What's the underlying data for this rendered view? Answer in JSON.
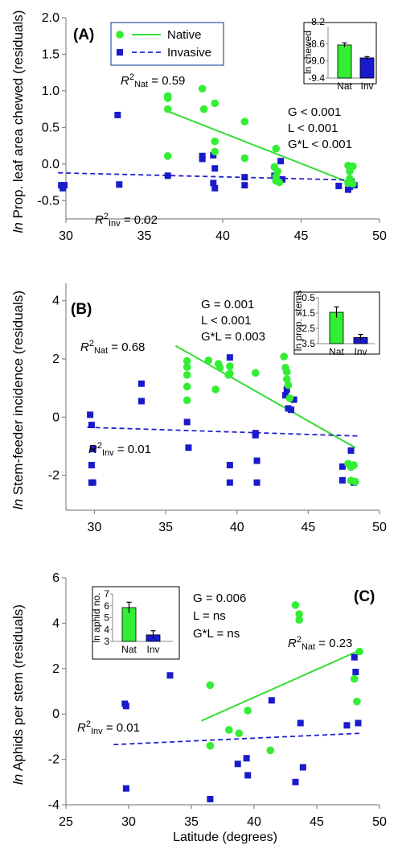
{
  "colors": {
    "native": "#33ee33",
    "invasive": "#1a1acc",
    "native_line": "#33dd33",
    "invasive_line": "#2222cc",
    "legend_border": "#5577bb"
  },
  "legend": {
    "native": "Native",
    "invasive": "Invasive"
  },
  "xlabel": "Latitude (degrees)",
  "chart_data": [
    {
      "type": "scatter",
      "label": "(A)",
      "ylabel": "Prop. leaf area chewed (residuals)",
      "ylabel_ln": "ln",
      "xlim": [
        30,
        50
      ],
      "ylim": [
        -0.75,
        2.0
      ],
      "xticks": [
        30,
        35,
        40,
        45,
        50
      ],
      "yticks": [
        -0.5,
        0.0,
        0.5,
        1.0,
        1.5,
        2.0
      ],
      "ytick_labels": [
        "-0.5",
        "0.0",
        "0.5",
        "1.0",
        "1.5",
        "2.0"
      ],
      "series": [
        {
          "name": "Native",
          "points": [
            [
              36.5,
              0.93
            ],
            [
              36.5,
              0.9
            ],
            [
              36.5,
              0.75
            ],
            [
              36.5,
              0.11
            ],
            [
              38.7,
              1.03
            ],
            [
              38.8,
              0.75
            ],
            [
              39.5,
              0.83
            ],
            [
              39.5,
              0.31
            ],
            [
              39.5,
              0.17
            ],
            [
              41.4,
              0.58
            ],
            [
              41.4,
              0.08
            ],
            [
              43.4,
              0.21
            ],
            [
              43.3,
              -0.04
            ],
            [
              43.5,
              -0.1
            ],
            [
              43.4,
              -0.17
            ],
            [
              43.4,
              -0.23
            ],
            [
              43.6,
              -0.25
            ],
            [
              48,
              -0.02
            ],
            [
              48.3,
              -0.03
            ],
            [
              48.1,
              -0.1
            ],
            [
              48.1,
              -0.2
            ],
            [
              48,
              -0.26
            ],
            [
              48.3,
              -0.27
            ]
          ],
          "fit": [
            [
              36.5,
              0.72
            ],
            [
              48.4,
              -0.28
            ]
          ]
        },
        {
          "name": "Invasive",
          "points": [
            [
              29.7,
              -0.29
            ],
            [
              29.8,
              -0.33
            ],
            [
              29.9,
              -0.29
            ],
            [
              33.3,
              0.67
            ],
            [
              33.4,
              -0.28
            ],
            [
              36.5,
              -0.16
            ],
            [
              38.7,
              0.11
            ],
            [
              38.7,
              0.07
            ],
            [
              39.4,
              0.12
            ],
            [
              39.5,
              -0.06
            ],
            [
              39.4,
              -0.26
            ],
            [
              39.5,
              -0.33
            ],
            [
              41.4,
              -0.18
            ],
            [
              41.4,
              -0.29
            ],
            [
              43.3,
              -0.16
            ],
            [
              43.7,
              0.04
            ],
            [
              43.8,
              -0.21
            ],
            [
              47.4,
              -0.3
            ],
            [
              48,
              -0.35
            ],
            [
              48.1,
              -0.31
            ],
            [
              48.2,
              -0.24
            ],
            [
              48.4,
              -0.29
            ]
          ],
          "fit": [
            [
              29.5,
              -0.12
            ],
            [
              48.4,
              -0.22
            ]
          ]
        }
      ],
      "r2": [
        {
          "prefix": "R",
          "sup": "2",
          "sub": "Nat",
          "value": " = 0.59"
        },
        {
          "prefix": "R",
          "sup": "2",
          "sub": "Inv",
          "value": " = 0.02"
        }
      ],
      "stats": [
        "G < 0.001",
        "L < 0.001",
        "G*L < 0.001"
      ],
      "inset": {
        "ylabel": "ln chewed",
        "categories": [
          "Nat",
          "Inv"
        ],
        "values": [
          -8.63,
          -8.93
        ],
        "errors": [
          0.05,
          0.03
        ],
        "ylim": [
          -9.4,
          -8.2
        ],
        "yticks": [
          -8.6,
          -9.0,
          -9.4
        ],
        "ytick_labels": [
          "-8.6",
          "-9.0",
          "-9.4"
        ],
        "top_label": "-8.2"
      }
    },
    {
      "type": "scatter",
      "label": "(B)",
      "ylabel": "Stem-feeder incidence (residuals)",
      "ylabel_ln": "ln",
      "xlim": [
        28,
        50
      ],
      "ylim": [
        -3.2,
        4.6
      ],
      "xticks": [
        30,
        35,
        40,
        45,
        50
      ],
      "yticks": [
        -2,
        0,
        2,
        4
      ],
      "ytick_labels": [
        "-2",
        "0",
        "2",
        "4"
      ],
      "series": [
        {
          "name": "Native",
          "points": [
            [
              36.5,
              1.93
            ],
            [
              36.5,
              1.72
            ],
            [
              36.5,
              1.45
            ],
            [
              36.5,
              1.05
            ],
            [
              36.5,
              0.58
            ],
            [
              38,
              1.95
            ],
            [
              38.5,
              0.95
            ],
            [
              38.7,
              1.83
            ],
            [
              38.8,
              1.7
            ],
            [
              39.5,
              1.75
            ],
            [
              39.5,
              1.5
            ],
            [
              39.4,
              1.45
            ],
            [
              41.3,
              1.52
            ],
            [
              43.3,
              2.08
            ],
            [
              43.4,
              1.7
            ],
            [
              43.5,
              1.55
            ],
            [
              43.5,
              1.3
            ],
            [
              43.6,
              1.1
            ],
            [
              43.7,
              0.65
            ],
            [
              47.8,
              -1.6
            ],
            [
              48,
              -1.72
            ],
            [
              48.2,
              -1.65
            ],
            [
              48,
              -2.18
            ],
            [
              48.3,
              -2.22
            ]
          ],
          "fit": [
            [
              35.7,
              2.45
            ],
            [
              48.3,
              -1.05
            ]
          ]
        },
        {
          "name": "Invasive",
          "points": [
            [
              29.7,
              0.08
            ],
            [
              29.8,
              -0.27
            ],
            [
              29.9,
              -1.1
            ],
            [
              29.8,
              -1.65
            ],
            [
              29.8,
              -2.25
            ],
            [
              29.9,
              -2.25
            ],
            [
              33.3,
              1.15
            ],
            [
              33.3,
              0.55
            ],
            [
              36.5,
              -0.17
            ],
            [
              36.6,
              -1.05
            ],
            [
              39.5,
              2.05
            ],
            [
              39.5,
              -1.65
            ],
            [
              39.5,
              -2.25
            ],
            [
              41.3,
              -0.55
            ],
            [
              41.3,
              -0.62
            ],
            [
              41.4,
              -1.5
            ],
            [
              41.4,
              -2.25
            ],
            [
              43.5,
              0.95
            ],
            [
              43.4,
              0.75
            ],
            [
              43.6,
              0.3
            ],
            [
              43.8,
              0.25
            ],
            [
              44,
              0.6
            ],
            [
              47.4,
              -1.7
            ],
            [
              47.4,
              -2.17
            ],
            [
              48,
              -1.15
            ],
            [
              48.1,
              -1.65
            ],
            [
              48.2,
              -2.25
            ]
          ],
          "fit": [
            [
              29.5,
              -0.35
            ],
            [
              48.5,
              -0.65
            ]
          ]
        }
      ],
      "r2": [
        {
          "prefix": "R",
          "sup": "2",
          "sub": "Nat",
          "value": " = 0.68"
        },
        {
          "prefix": "R",
          "sup": "2",
          "sub": "Inv",
          "value": " = 0.01"
        }
      ],
      "stats": [
        "G = 0.001",
        "L < 0.001",
        "G*L = 0.003"
      ],
      "inset": {
        "ylabel": "ln prop. stems",
        "categories": [
          "Nat",
          "Inv"
        ],
        "values": [
          -1.45,
          -3.1
        ],
        "errors": [
          0.35,
          0.2
        ],
        "ylim": [
          -3.5,
          -0.5
        ],
        "yticks": [
          -0.5,
          -1.5,
          -2.5,
          -3.5
        ],
        "ytick_labels": [
          "-0.5",
          "-1.5",
          "-2.5",
          "-3.5"
        ],
        "top_label": ""
      }
    },
    {
      "type": "scatter",
      "label": "(C)",
      "ylabel": "Aphids per stem (residuals)",
      "ylabel_ln": "ln",
      "xlim": [
        25,
        50
      ],
      "ylim": [
        -4,
        6
      ],
      "xticks": [
        25,
        30,
        35,
        40,
        45,
        50
      ],
      "yticks": [
        -4,
        -2,
        0,
        2,
        4,
        6
      ],
      "ytick_labels": [
        "-4",
        "-2",
        "0",
        "2",
        "4",
        "6"
      ],
      "series": [
        {
          "name": "Native",
          "points": [
            [
              36.5,
              1.27
            ],
            [
              36.5,
              -1.4
            ],
            [
              38,
              -0.7
            ],
            [
              38.8,
              -0.85
            ],
            [
              39.5,
              0.15
            ],
            [
              41.3,
              -1.6
            ],
            [
              43.3,
              4.8
            ],
            [
              43.6,
              4.4
            ],
            [
              43.6,
              4.15
            ],
            [
              48,
              1.55
            ],
            [
              48.2,
              0.55
            ],
            [
              48.4,
              2.75
            ]
          ],
          "fit": [
            [
              35.8,
              -0.3
            ],
            [
              48.4,
              2.8
            ]
          ]
        },
        {
          "name": "Invasive",
          "points": [
            [
              29.7,
              0.45
            ],
            [
              29.8,
              0.35
            ],
            [
              29.8,
              -3.28
            ],
            [
              33.3,
              1.7
            ],
            [
              36.5,
              -3.75
            ],
            [
              38.7,
              -2.2
            ],
            [
              39.4,
              -1.95
            ],
            [
              39.5,
              -2.7
            ],
            [
              41.4,
              0.6
            ],
            [
              43.3,
              -3.0
            ],
            [
              43.7,
              -0.4
            ],
            [
              43.9,
              -2.35
            ],
            [
              47.4,
              -0.5
            ],
            [
              48,
              2.5
            ],
            [
              48.1,
              1.85
            ],
            [
              48.3,
              -0.4
            ]
          ],
          "fit": [
            [
              28.8,
              -1.35
            ],
            [
              48.5,
              -0.85
            ]
          ]
        }
      ],
      "r2": [
        {
          "prefix": "R",
          "sup": "2",
          "sub": "Nat",
          "value": " = 0.23"
        },
        {
          "prefix": "R",
          "sup": "2",
          "sub": "Inv",
          "value": " = 0.01"
        }
      ],
      "stats": [
        "G = 0.006",
        "L = ns",
        "G*L = ns"
      ],
      "inset": {
        "ylabel": "ln aphid no.",
        "categories": [
          "Nat",
          "Inv"
        ],
        "values": [
          5.85,
          3.55
        ],
        "errors": [
          0.45,
          0.35
        ],
        "ylim": [
          3,
          7
        ],
        "yticks": [
          3,
          4,
          5,
          6,
          7
        ],
        "ytick_labels": [
          "3",
          "4",
          "5",
          "6",
          "7"
        ],
        "top_label": ""
      }
    }
  ]
}
